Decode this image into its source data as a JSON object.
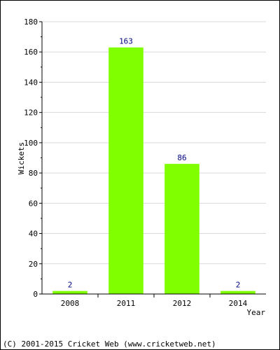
{
  "chart_data": {
    "type": "bar",
    "title": "",
    "xlabel": "Year",
    "ylabel": "Wickets",
    "categories": [
      "2008",
      "2011",
      "2012",
      "2014"
    ],
    "values": [
      2,
      163,
      86,
      2
    ],
    "data_labels": [
      "2",
      "163",
      "86",
      "2"
    ],
    "ylim": [
      0,
      180
    ],
    "y_ticks": [
      0,
      20,
      40,
      60,
      80,
      100,
      120,
      140,
      160,
      180
    ],
    "grid": true,
    "legend": "none",
    "colors": {
      "bar": "#7fff00",
      "grid": "#d9d9d9",
      "data_label": "#000080"
    }
  },
  "footer": {
    "copyright": "(C) 2001-2015 Cricket Web (www.cricketweb.net)"
  }
}
